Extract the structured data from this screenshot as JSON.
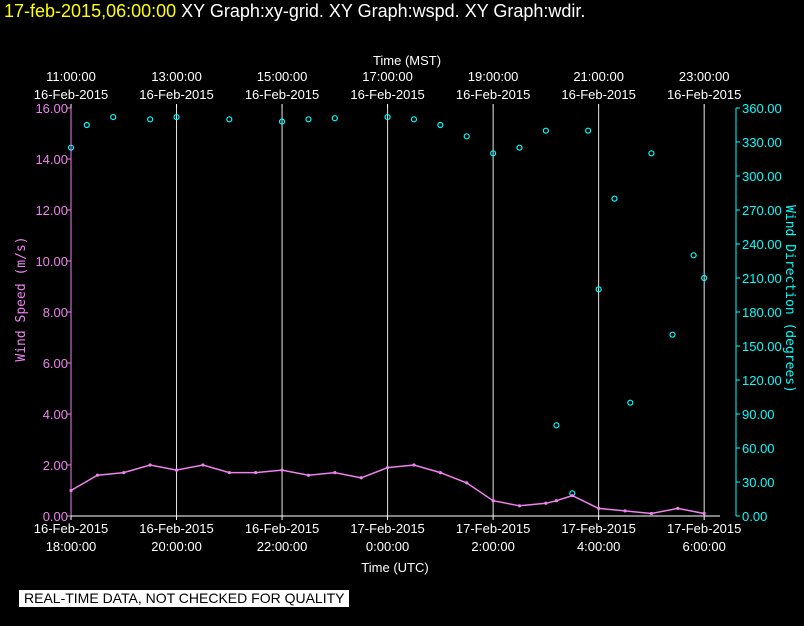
{
  "header": {
    "datetime": "17-feb-2015,06:00:00",
    "graphs": [
      "XY Graph:xy-grid.",
      "XY Graph:wspd.",
      "XY Graph:wdir."
    ]
  },
  "disclaimer": "REAL-TIME DATA, NOT CHECKED FOR QUALITY",
  "colors": {
    "speed": "#ee82ee",
    "direction": "#00ffff",
    "background": "#000000",
    "grid": "#ffffff",
    "header_date": "#ffff00"
  },
  "chart_data": {
    "type": "line",
    "top_axis": {
      "label": "Time (MST)",
      "ticks": [
        {
          "time": "11:00:00",
          "date": "16-Feb-2015"
        },
        {
          "time": "13:00:00",
          "date": "16-Feb-2015"
        },
        {
          "time": "15:00:00",
          "date": "16-Feb-2015"
        },
        {
          "time": "17:00:00",
          "date": "16-Feb-2015"
        },
        {
          "time": "19:00:00",
          "date": "16-Feb-2015"
        },
        {
          "time": "21:00:00",
          "date": "16-Feb-2015"
        },
        {
          "time": "23:00:00",
          "date": "16-Feb-2015"
        }
      ]
    },
    "bottom_axis": {
      "label": "Time (UTC)",
      "ticks": [
        {
          "date": "16-Feb-2015",
          "time": "18:00:00"
        },
        {
          "date": "16-Feb-2015",
          "time": "20:00:00"
        },
        {
          "date": "16-Feb-2015",
          "time": "22:00:00"
        },
        {
          "date": "17-Feb-2015",
          "time": "0:00:00"
        },
        {
          "date": "17-Feb-2015",
          "time": "2:00:00"
        },
        {
          "date": "17-Feb-2015",
          "time": "4:00:00"
        },
        {
          "date": "17-Feb-2015",
          "time": "6:00:00"
        }
      ],
      "tick_hours": [
        0,
        2,
        4,
        6,
        8,
        10,
        12
      ],
      "xlim_hours": [
        0,
        12.3
      ]
    },
    "y_left": {
      "label": "Wind Speed (m/s)",
      "ticks": [
        "0.00",
        "2.00",
        "4.00",
        "6.00",
        "8.00",
        "10.00",
        "12.00",
        "14.00",
        "16.00"
      ],
      "ylim": [
        0,
        16
      ]
    },
    "y_right": {
      "label": "Wind Direction (degrees)",
      "ticks": [
        "0.00",
        "30.00",
        "60.00",
        "90.00",
        "120.00",
        "150.00",
        "180.00",
        "210.00",
        "240.00",
        "270.00",
        "300.00",
        "330.00",
        "360.00"
      ],
      "ylim": [
        0,
        360
      ]
    },
    "grid": "vertical",
    "series": [
      {
        "key": "speed",
        "style": "line",
        "axis": "left",
        "x_hours": [
          0,
          0.5,
          1,
          1.5,
          2,
          2.5,
          3,
          3.5,
          4,
          4.5,
          5,
          5.5,
          6,
          6.5,
          7,
          7.5,
          8,
          8.5,
          9,
          9.2,
          9.5,
          10,
          10.5,
          11,
          11.5,
          12
        ],
        "values": [
          1.0,
          1.6,
          1.7,
          2.0,
          1.8,
          2.0,
          1.7,
          1.7,
          1.8,
          1.6,
          1.7,
          1.5,
          1.9,
          2.0,
          1.7,
          1.3,
          0.6,
          0.4,
          0.5,
          0.6,
          0.8,
          0.3,
          0.2,
          0.1,
          0.3,
          0.1
        ]
      },
      {
        "key": "direction",
        "style": "scatter",
        "axis": "right",
        "x_hours": [
          0,
          0.3,
          0.8,
          1.5,
          2,
          3,
          4,
          4.5,
          5,
          6,
          6.5,
          7,
          7.5,
          8,
          8.5,
          9,
          9.2,
          9.5,
          9.8,
          10,
          10.3,
          10.6,
          11,
          11.4,
          11.8,
          12
        ],
        "values": [
          325,
          345,
          352,
          350,
          352,
          350,
          348,
          350,
          351,
          352,
          350,
          345,
          335,
          320,
          325,
          340,
          80,
          20,
          340,
          200,
          280,
          100,
          320,
          160,
          230,
          210
        ]
      }
    ]
  }
}
